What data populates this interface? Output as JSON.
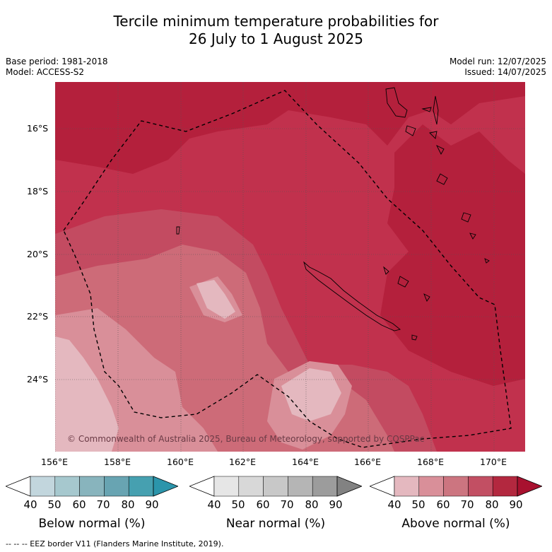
{
  "title_line1": "Tercile minimum temperature probabilities for",
  "title_line2": "26 July to 1 August 2025",
  "meta": {
    "base_period": "Base period: 1981-2018",
    "model": "Model: ACCESS-S2",
    "model_run": "Model run: 12/07/2025",
    "issued": "Issued: 14/07/2025"
  },
  "axes": {
    "lat_labels": [
      "16°S",
      "18°S",
      "20°S",
      "22°S",
      "24°S"
    ],
    "lon_labels": [
      "156°E",
      "158°E",
      "160°E",
      "162°E",
      "164°E",
      "166°E",
      "168°E",
      "170°E"
    ]
  },
  "credit": "© Commonwealth of Australia 2025, Bureau of Meteorology, supported by COSPPac",
  "legend": [
    {
      "label": "Below normal (%)",
      "ticks": [
        "40",
        "50",
        "60",
        "70",
        "80",
        "90"
      ],
      "colors": [
        "#ffffff",
        "#c2d6dd",
        "#a6c8ce",
        "#88b4bd",
        "#68a4b2",
        "#46a0b0",
        "#2b95ab"
      ]
    },
    {
      "label": "Near normal (%)",
      "ticks": [
        "40",
        "50",
        "60",
        "70",
        "80",
        "90"
      ],
      "colors": [
        "#ffffff",
        "#e6e6e6",
        "#d8d8d8",
        "#c8c8c8",
        "#b5b5b5",
        "#9c9c9c",
        "#828282"
      ]
    },
    {
      "label": "Above normal (%)",
      "ticks": [
        "40",
        "50",
        "60",
        "70",
        "80",
        "90"
      ],
      "colors": [
        "#ffffff",
        "#e4b8bf",
        "#d98f99",
        "#cc7580",
        "#c24f63",
        "#b3283f",
        "#a8112f"
      ]
    }
  ],
  "footer": "-- -- -- EEZ border V11 (Flanders Marine Institute, 2019)."
}
